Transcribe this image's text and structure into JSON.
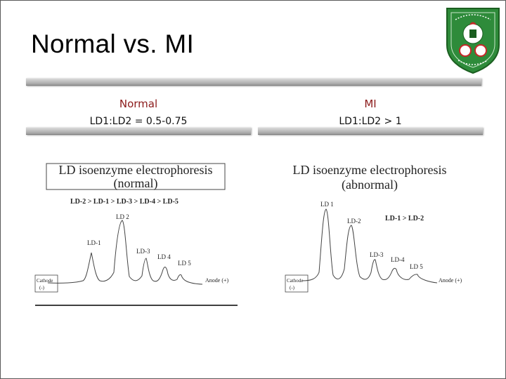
{
  "slide": {
    "title": "Normal vs. MI",
    "logo_icon": "university-seal-icon"
  },
  "left": {
    "heading": "Normal",
    "ratio": "LD1:LD2 = 0.5-0.75",
    "figure": {
      "title_line1": "LD isoenzyme electrophoresis",
      "title_line2": "(normal)",
      "order": "LD-2 > LD-1 > LD-3 > LD-4 > LD-5",
      "peaks": [
        "LD-1",
        "LD 2",
        "LD-3",
        "LD 4",
        "LD 5"
      ],
      "cathode_line1": "Cathode",
      "cathode_line2": "(-)",
      "anode": "Anode (+)"
    }
  },
  "right": {
    "heading": "MI",
    "ratio": "LD1:LD2 > 1",
    "figure": {
      "title_line1": "LD isoenzyme electrophoresis",
      "title_line2": "(abnormal)",
      "order": "LD-1 > LD-2",
      "peaks": [
        "LD 1",
        "LD-2",
        "LD-3",
        "LD-4",
        "LD 5"
      ],
      "cathode_line1": "Cathode",
      "cathode_line2": "(-)",
      "anode": "Anode (+)"
    }
  },
  "colors": {
    "heading": "#8b1a1a",
    "logo_green": "#2e7d32",
    "logo_red": "#c62828"
  }
}
